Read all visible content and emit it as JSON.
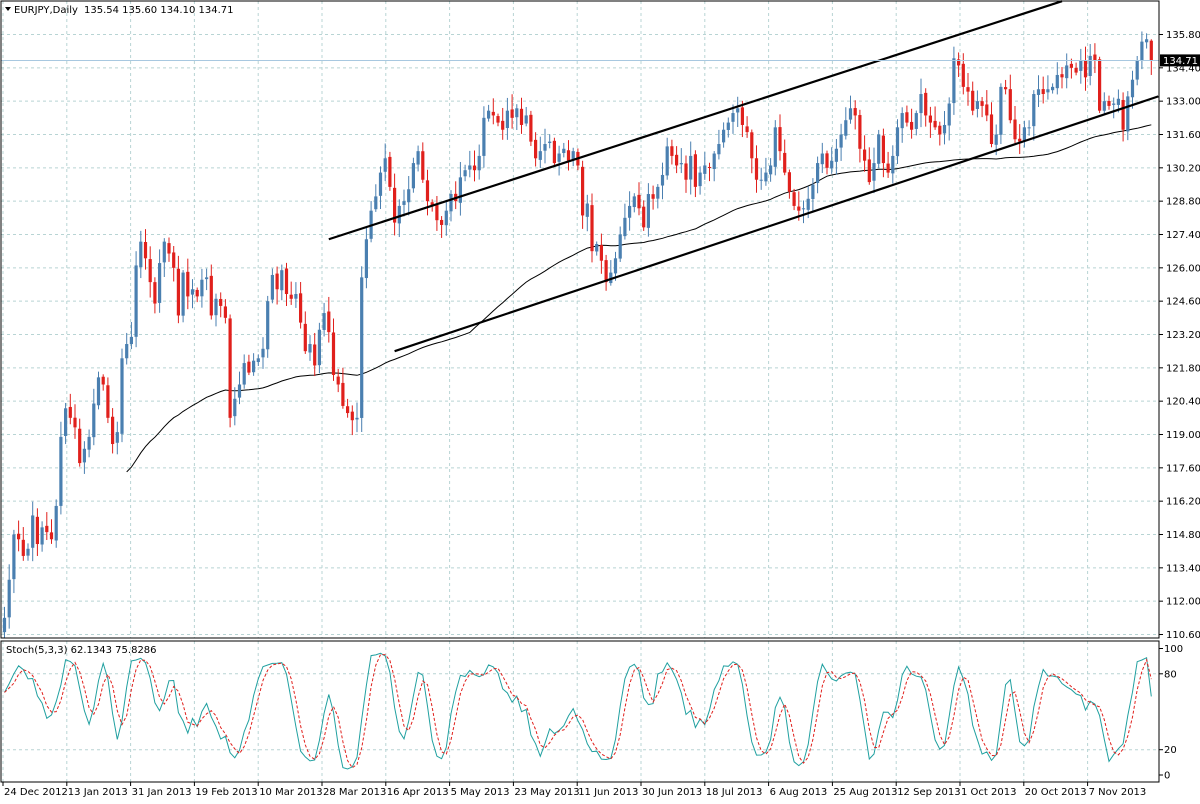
{
  "header": {
    "symbol_label": "EURJPY,Daily",
    "ohlc_label": "135.54 135.60 134.10 134.71",
    "last_price_label": "134.71"
  },
  "oscillator_header": "Stoch(5,3,3) 62.1343 75.8286",
  "chart_data": [
    {
      "type": "candlestick",
      "title": "EURJPY,Daily",
      "ohlc_last": {
        "open": 135.54,
        "high": 135.6,
        "low": 134.1,
        "close": 134.71
      },
      "last_price": 134.71,
      "ylim": [
        110.6,
        137.2
      ],
      "yticks": [
        110.6,
        112.0,
        113.4,
        114.8,
        116.2,
        117.6,
        119.0,
        120.4,
        121.8,
        123.2,
        124.6,
        126.0,
        127.4,
        128.8,
        130.2,
        131.6,
        133.0,
        134.4,
        135.8
      ],
      "ytick_labels": [
        "110.60",
        "112.00",
        "113.40",
        "114.80",
        "116.20",
        "117.60",
        "119.00",
        "120.40",
        "121.80",
        "123.20",
        "124.60",
        "126.00",
        "127.40",
        "128.80",
        "130.20",
        "131.60",
        "133.00",
        "134.40",
        "135.80"
      ],
      "xtick_labels": [
        "24 Dec 2012",
        "13 Jan 2013",
        "31 Jan 2013",
        "19 Feb 2013",
        "10 Mar 2013",
        "28 Mar 2013",
        "16 Apr 2013",
        "5 May 2013",
        "23 May 2013",
        "11 Jun 2013",
        "30 Jun 2013",
        "18 Jul 2013",
        "6 Aug 2013",
        "25 Aug 2013",
        "12 Sep 2013",
        "1 Oct 2013",
        "20 Oct 2013",
        "7 Nov 2013"
      ],
      "grid": true,
      "bullish_color": "#4a7fb0",
      "bearish_color": "#e0201c",
      "closes": [
        111.3,
        112.9,
        114.8,
        114.6,
        113.9,
        114.2,
        115.6,
        114.4,
        115.1,
        114.9,
        114.6,
        116.0,
        118.9,
        120.1,
        119.7,
        119.3,
        117.8,
        118.4,
        118.9,
        120.3,
        121.4,
        121.1,
        119.7,
        118.6,
        119.1,
        122.2,
        122.8,
        123.1,
        126.1,
        127.1,
        126.4,
        125.4,
        124.5,
        126.2,
        127.1,
        126.6,
        126.0,
        124.0,
        125.8,
        124.8,
        125.1,
        124.8,
        125.5,
        125.6,
        124.0,
        124.7,
        124.4,
        123.9,
        119.7,
        120.5,
        121.1,
        122.0,
        121.6,
        122.1,
        122.2,
        122.6,
        124.6,
        125.7,
        125.1,
        125.9,
        124.9,
        124.7,
        124.9,
        123.7,
        122.5,
        122.8,
        121.9,
        123.4,
        124.1,
        123.3,
        121.5,
        121.1,
        120.2,
        119.9,
        119.6,
        119.7,
        125.6,
        127.2,
        128.4,
        129.0,
        130.0,
        130.6,
        129.4,
        127.9,
        128.6,
        128.8,
        129.3,
        130.4,
        130.9,
        129.7,
        128.8,
        128.6,
        128.0,
        127.8,
        128.4,
        129.1,
        128.8,
        129.8,
        130.1,
        130.3,
        130.1,
        130.7,
        132.3,
        132.6,
        132.4,
        132.1,
        131.8,
        132.6,
        132.3,
        132.7,
        132.0,
        132.4,
        131.3,
        130.6,
        130.9,
        131.2,
        131.3,
        130.4,
        130.8,
        131.0,
        130.5,
        130.9,
        130.3,
        128.2,
        128.7,
        126.7,
        127.0,
        126.3,
        125.4,
        125.8,
        126.4,
        127.4,
        128.1,
        128.6,
        129.0,
        128.5,
        127.7,
        129.1,
        128.9,
        129.4,
        129.9,
        131.1,
        130.7,
        130.3,
        130.4,
        129.7,
        130.7,
        129.4,
        130.0,
        130.3,
        130.2,
        130.8,
        131.2,
        131.8,
        132.1,
        132.5,
        132.7,
        132.0,
        131.7,
        130.6,
        129.7,
        129.7,
        130.0,
        130.3,
        131.9,
        130.9,
        130.0,
        129.2,
        128.6,
        128.4,
        128.5,
        128.9,
        129.5,
        130.4,
        130.8,
        130.2,
        130.5,
        131.0,
        131.6,
        132.2,
        132.7,
        132.4,
        131.0,
        130.5,
        129.6,
        130.4,
        131.6,
        130.4,
        130.0,
        130.7,
        131.9,
        132.5,
        132.1,
        131.8,
        132.5,
        133.3,
        132.4,
        132.1,
        131.9,
        131.6,
        132.0,
        132.9,
        134.8,
        134.5,
        133.6,
        133.4,
        132.6,
        133.0,
        132.8,
        132.4,
        131.2,
        131.6,
        133.6,
        133.5,
        132.2,
        131.4,
        131.3,
        131.9,
        131.9,
        133.3,
        133.5,
        133.3,
        133.5,
        133.6,
        134.1,
        134.0,
        134.5,
        134.4,
        134.2,
        134.7,
        134.0,
        134.9,
        134.7,
        132.6,
        133.0,
        132.8,
        132.9,
        133.1,
        131.8,
        133.2,
        133.9,
        134.7,
        135.5,
        135.6,
        134.7
      ]
    },
    {
      "type": "line",
      "title": "Stoch(5,3,3) 62.1343 75.8286",
      "ylim": [
        0,
        100
      ],
      "yticks": [
        0,
        20,
        80,
        100
      ],
      "ytick_labels": [
        "0",
        "20",
        "80",
        "100"
      ],
      "last_values": [
        62.1343,
        75.8286
      ],
      "series_colors": [
        "#20a0a0",
        "#e0201c"
      ]
    }
  ],
  "colors": {
    "grid": "#b8d4d4",
    "border": "#000000",
    "moving_average": "#000000",
    "price_line": "#a8c8e0",
    "stoch_main": "#20a0a0",
    "stoch_signal": "#e0201c"
  }
}
